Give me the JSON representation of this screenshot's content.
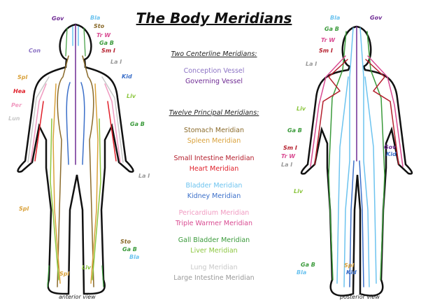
{
  "title": "The Body Meridians",
  "colors": {
    "gov": "#6f2b94",
    "con": "#8b72c4",
    "bla": "#6cc3ef",
    "sto": "#8a6a2a",
    "trw": "#d94b92",
    "gab": "#3a9a3a",
    "smi": "#b5202e",
    "lai": "#999999",
    "kid": "#3b6fc9",
    "liv": "#8cc63f",
    "spl": "#d9a13a",
    "hea": "#e0202a",
    "per": "#f09ac0",
    "lun": "#c8c8c8"
  },
  "legend": {
    "centerline_heading": "Two Centerline Meridians:",
    "centerline": [
      "Conception Vessel",
      "Governing Vessel"
    ],
    "principal_heading": "Twelve Principal Meridians:",
    "principal": [
      "Stomach Meridian",
      "Spleen Meridian",
      "Small Intestine Meridian",
      "Heart Meridian",
      "Bladder Meridian",
      "Kidney Meridian",
      "Pericardium Meridian",
      "Triple Warmer Meridian",
      "Gall Bladder Meridian",
      "Liver Meridian",
      "Lung Meridian",
      "Large Intestine Meridian"
    ]
  },
  "anterior": {
    "caption": "anterior view",
    "labels": [
      "Gov",
      "Bla",
      "Sto",
      "Tr W",
      "Ga B",
      "Sm I",
      "Con",
      "La I",
      "Spl",
      "Kid",
      "Hea",
      "Liv",
      "Per",
      "Lun",
      "Ga B",
      "La I",
      "Spl",
      "Sto",
      "Ga B",
      "Bla",
      "Liv",
      "Spl"
    ]
  },
  "posterior": {
    "caption": "posterior view",
    "labels": [
      "Bla",
      "Gov",
      "Ga B",
      "Tr W",
      "Sm I",
      "La I",
      "Liv",
      "Ga B",
      "Sm I",
      "Tr W",
      "La I",
      "Gov",
      "Kid",
      "Liv",
      "Ga B",
      "Bla",
      "Spl",
      "Kid"
    ]
  }
}
